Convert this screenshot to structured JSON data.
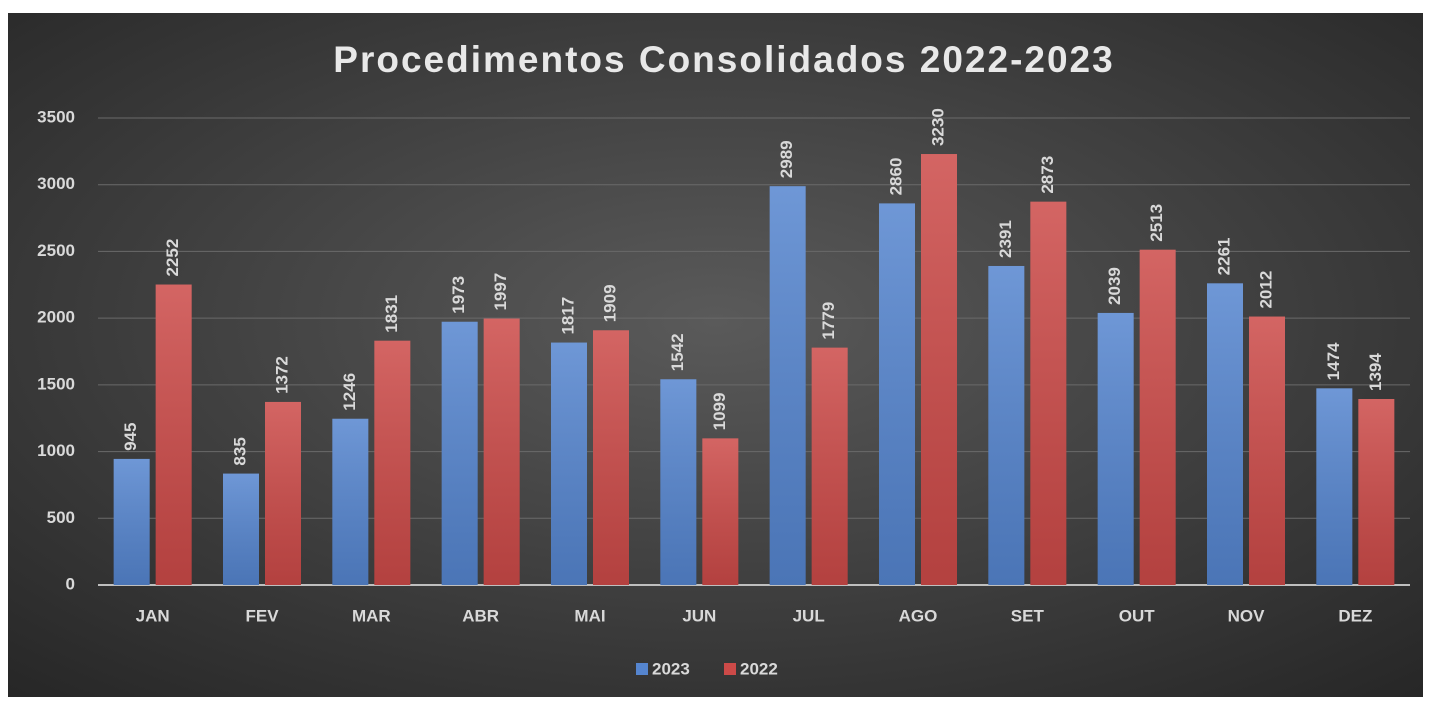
{
  "chart_data": {
    "type": "bar",
    "title": "Procedimentos Consolidados 2022-2023",
    "categories": [
      "JAN",
      "FEV",
      "MAR",
      "ABR",
      "MAI",
      "JUN",
      "JUL",
      "AGO",
      "SET",
      "OUT",
      "NOV",
      "DEZ"
    ],
    "series": [
      {
        "name": "2023",
        "color": "#5585cf",
        "values": [
          945,
          835,
          1246,
          1973,
          1817,
          1542,
          2989,
          2860,
          2391,
          2039,
          2261,
          1474
        ]
      },
      {
        "name": "2022",
        "color": "#cc4a48",
        "values": [
          2252,
          1372,
          1831,
          1997,
          1909,
          1099,
          1779,
          3230,
          2873,
          2513,
          2012,
          1394
        ]
      }
    ],
    "ylim": [
      0,
      3500
    ],
    "yticks": [
      0,
      500,
      1000,
      1500,
      2000,
      2500,
      3000,
      3500
    ],
    "grid": true,
    "legend": "bottom"
  }
}
